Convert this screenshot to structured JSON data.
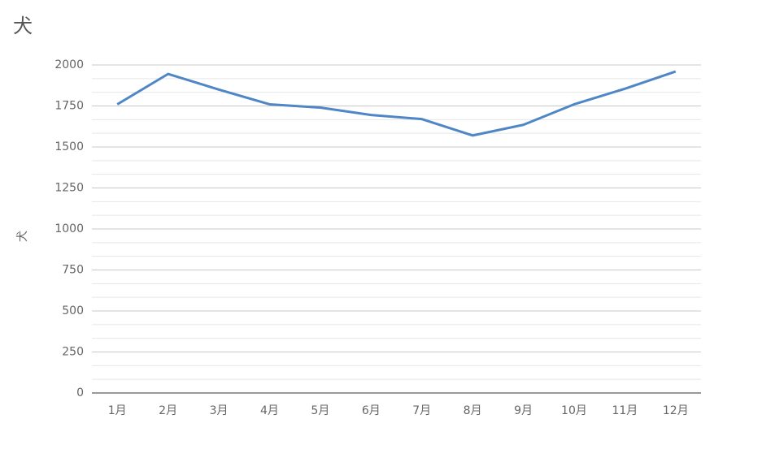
{
  "chart_data": {
    "type": "line",
    "title": "犬",
    "y_label": "犬",
    "categories": [
      "1月",
      "2月",
      "3月",
      "4月",
      "5月",
      "6月",
      "7月",
      "8月",
      "9月",
      "10月",
      "11月",
      "12月"
    ],
    "series": [
      {
        "name": "犬",
        "color": "#4f86c6",
        "values": [
          1760,
          1945,
          1850,
          1760,
          1740,
          1695,
          1670,
          1570,
          1635,
          1760,
          1855,
          1960
        ]
      }
    ],
    "ylim": [
      0,
      2000
    ],
    "yticks": [
      0,
      250,
      500,
      750,
      1000,
      1250,
      1500,
      1750,
      2000
    ],
    "grid": true,
    "legend": false
  }
}
